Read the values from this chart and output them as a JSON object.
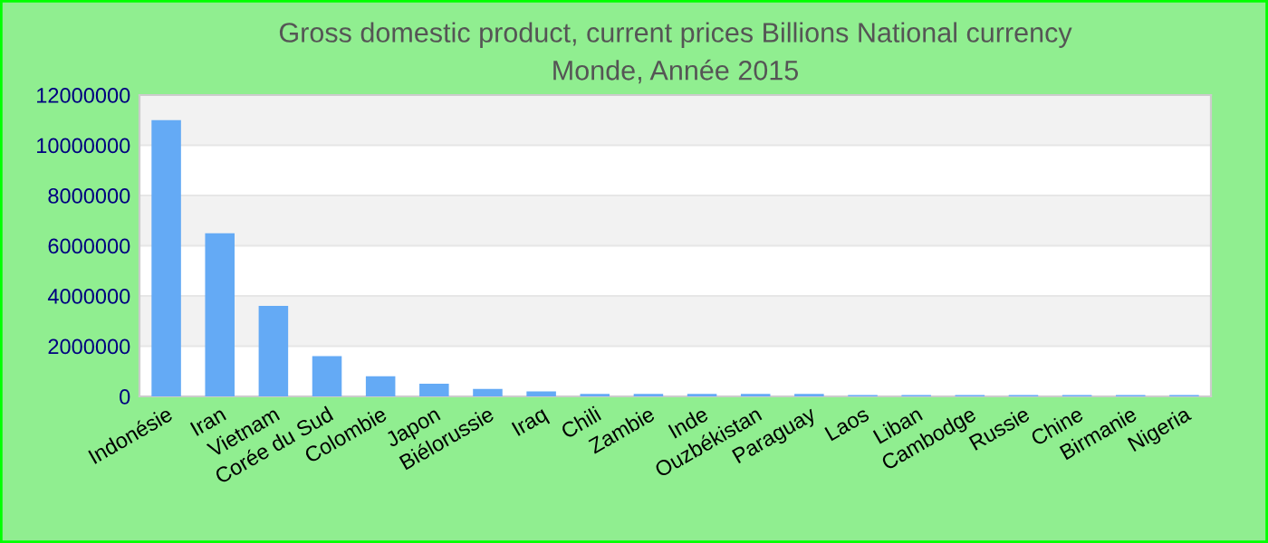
{
  "chart_data": {
    "type": "bar",
    "title": "Gross domestic product, current prices Billions National currency\nMonde, Année 2015",
    "categories": [
      "Indonésie",
      "Iran",
      "Vietnam",
      "Corée du Sud",
      "Colombie",
      "Japon",
      "Biélorussie",
      "Iraq",
      "Chili",
      "Zambie",
      "Inde",
      "Ouzbékistan",
      "Paraguay",
      "Laos",
      "Liban",
      "Cambodge",
      "Russie",
      "Chine",
      "Birmanie",
      "Nigeria"
    ],
    "values": [
      11000000,
      6500000,
      3600000,
      1600000,
      800000,
      500000,
      300000,
      200000,
      100000,
      100000,
      100000,
      100000,
      100000,
      50000,
      50000,
      50000,
      50000,
      50000,
      50000,
      50000
    ],
    "color": "#64aaf5",
    "ylim": [
      0,
      12000000
    ],
    "yticks": [
      0,
      2000000,
      4000000,
      6000000,
      8000000,
      10000000,
      12000000
    ],
    "grid": "y"
  }
}
